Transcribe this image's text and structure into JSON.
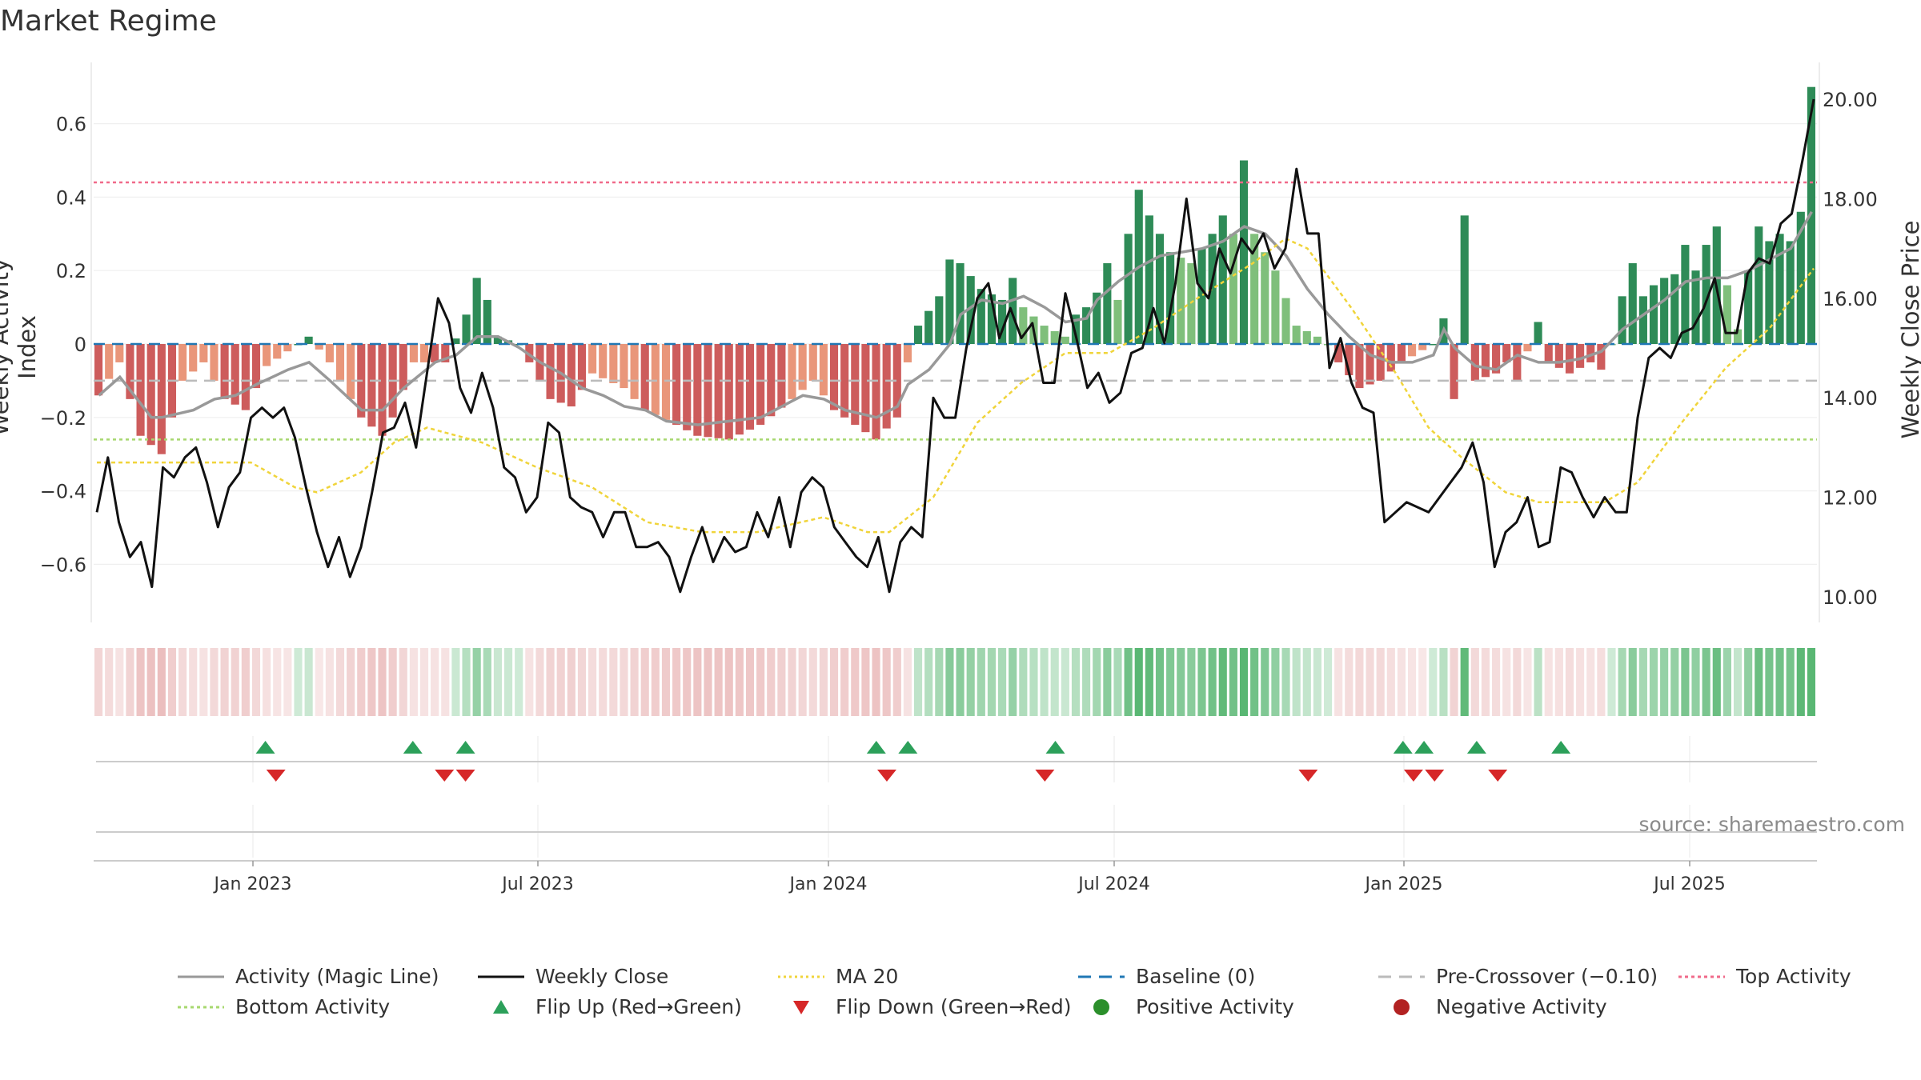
{
  "chart_data": {
    "type": "bar",
    "title": "Market Regime",
    "ylabel_left": "Weekly Activity Index",
    "ylabel_right": "Weekly Close Price",
    "ylim_left": [
      -0.75,
      0.75
    ],
    "ylim_right": [
      9.5,
      20.5
    ],
    "yticks_left": [
      "−0.6",
      "−0.4",
      "−0.2",
      "0",
      "0.2",
      "0.4",
      "0.6"
    ],
    "yticks_right": [
      "10.00",
      "12.00",
      "14.00",
      "16.00",
      "18.00",
      "20.00"
    ],
    "xticks": [
      "Jan 2023",
      "Jul 2023",
      "Jan 2024",
      "Jul 2024",
      "Jan 2025",
      "Jul 2025"
    ],
    "source": "source: sharemaestro.com",
    "reference_lines": {
      "baseline": 0,
      "pre_crossover": -0.1,
      "top_activity": 0.44,
      "bottom_activity": -0.26
    },
    "keyframes_activity": [
      [
        0,
        -0.14
      ],
      [
        2,
        -0.05
      ],
      [
        4,
        -0.25
      ],
      [
        6,
        -0.3
      ],
      [
        8,
        -0.1
      ],
      [
        10,
        -0.05
      ],
      [
        12,
        -0.15
      ],
      [
        14,
        -0.18
      ],
      [
        16,
        -0.06
      ],
      [
        18,
        -0.02
      ],
      [
        20,
        0.02
      ],
      [
        22,
        -0.05
      ],
      [
        25,
        -0.2
      ],
      [
        27,
        -0.25
      ],
      [
        28,
        -0.2
      ],
      [
        30,
        -0.05
      ],
      [
        33,
        -0.05
      ],
      [
        35,
        0.08
      ],
      [
        36,
        0.18
      ],
      [
        37,
        0.12
      ],
      [
        38,
        0.02
      ],
      [
        40,
        0.0
      ],
      [
        41,
        -0.05
      ],
      [
        43,
        -0.15
      ],
      [
        45,
        -0.17
      ],
      [
        47,
        -0.08
      ],
      [
        50,
        -0.12
      ],
      [
        52,
        -0.18
      ],
      [
        55,
        -0.22
      ],
      [
        57,
        -0.25
      ],
      [
        60,
        -0.26
      ],
      [
        63,
        -0.22
      ],
      [
        66,
        -0.15
      ],
      [
        68,
        -0.1
      ],
      [
        70,
        -0.18
      ],
      [
        72,
        -0.22
      ],
      [
        74,
        -0.26
      ],
      [
        76,
        -0.2
      ],
      [
        77,
        -0.05
      ],
      [
        78,
        0.05
      ],
      [
        80,
        0.13
      ],
      [
        81,
        0.23
      ],
      [
        82,
        0.22
      ],
      [
        84,
        0.15
      ],
      [
        86,
        0.12
      ],
      [
        87,
        0.18
      ],
      [
        88,
        0.1
      ],
      [
        90,
        0.05
      ],
      [
        92,
        0.02
      ],
      [
        93,
        0.08
      ],
      [
        94,
        0.1
      ],
      [
        95,
        0.14
      ],
      [
        96,
        0.22
      ],
      [
        97,
        0.12
      ],
      [
        98,
        0.3
      ],
      [
        99,
        0.42
      ],
      [
        100,
        0.35
      ],
      [
        102,
        0.25
      ],
      [
        104,
        0.22
      ],
      [
        106,
        0.3
      ],
      [
        107,
        0.35
      ],
      [
        108,
        0.3
      ],
      [
        109,
        0.5
      ],
      [
        110,
        0.3
      ],
      [
        111,
        0.25
      ],
      [
        112,
        0.2
      ],
      [
        114,
        0.05
      ],
      [
        116,
        0.02
      ],
      [
        117,
        0.0
      ],
      [
        118,
        -0.05
      ],
      [
        120,
        -0.12
      ],
      [
        122,
        -0.1
      ],
      [
        124,
        -0.05
      ],
      [
        127,
        0.0
      ],
      [
        128,
        0.07
      ],
      [
        129,
        -0.15
      ],
      [
        130,
        0.35
      ],
      [
        131,
        -0.1
      ],
      [
        133,
        -0.08
      ],
      [
        134,
        -0.05
      ],
      [
        135,
        -0.1
      ],
      [
        137,
        0.06
      ],
      [
        138,
        -0.05
      ],
      [
        140,
        -0.08
      ],
      [
        142,
        -0.05
      ],
      [
        143,
        -0.07
      ],
      [
        144,
        0.0
      ],
      [
        145,
        0.13
      ],
      [
        146,
        0.22
      ],
      [
        147,
        0.13
      ],
      [
        148,
        0.16
      ],
      [
        149,
        0.18
      ],
      [
        150,
        0.19
      ],
      [
        151,
        0.27
      ],
      [
        152,
        0.2
      ],
      [
        153,
        0.27
      ],
      [
        154,
        0.32
      ],
      [
        155,
        0.16
      ],
      [
        156,
        0.04
      ],
      [
        157,
        0.2
      ],
      [
        158,
        0.32
      ],
      [
        159,
        0.28
      ],
      [
        160,
        0.3
      ],
      [
        161,
        0.28
      ],
      [
        162,
        0.36
      ],
      [
        163,
        0.7
      ]
    ],
    "keyframes_close": [
      [
        0,
        11.7
      ],
      [
        1,
        12.8
      ],
      [
        2,
        11.5
      ],
      [
        3,
        10.8
      ],
      [
        4,
        11.1
      ],
      [
        5,
        10.2
      ],
      [
        6,
        12.6
      ],
      [
        7,
        12.4
      ],
      [
        8,
        12.8
      ],
      [
        9,
        13.0
      ],
      [
        10,
        12.3
      ],
      [
        11,
        11.4
      ],
      [
        12,
        12.2
      ],
      [
        13,
        12.5
      ],
      [
        14,
        13.6
      ],
      [
        15,
        13.8
      ],
      [
        16,
        13.6
      ],
      [
        17,
        13.8
      ],
      [
        18,
        13.2
      ],
      [
        19,
        12.2
      ],
      [
        20,
        11.3
      ],
      [
        21,
        10.6
      ],
      [
        22,
        11.2
      ],
      [
        23,
        10.4
      ],
      [
        24,
        11.0
      ],
      [
        25,
        12.1
      ],
      [
        26,
        13.3
      ],
      [
        27,
        13.4
      ],
      [
        28,
        13.9
      ],
      [
        29,
        13.0
      ],
      [
        30,
        14.5
      ],
      [
        31,
        16.0
      ],
      [
        32,
        15.5
      ],
      [
        33,
        14.2
      ],
      [
        34,
        13.7
      ],
      [
        35,
        14.5
      ],
      [
        36,
        13.8
      ],
      [
        37,
        12.6
      ],
      [
        38,
        12.4
      ],
      [
        39,
        11.7
      ],
      [
        40,
        12.0
      ],
      [
        41,
        13.5
      ],
      [
        42,
        13.3
      ],
      [
        43,
        12.0
      ],
      [
        44,
        11.8
      ],
      [
        45,
        11.7
      ],
      [
        46,
        11.2
      ],
      [
        47,
        11.7
      ],
      [
        48,
        11.7
      ],
      [
        49,
        11.0
      ],
      [
        50,
        11.0
      ],
      [
        51,
        11.1
      ],
      [
        52,
        10.8
      ],
      [
        53,
        10.1
      ],
      [
        54,
        10.8
      ],
      [
        55,
        11.4
      ],
      [
        56,
        10.7
      ],
      [
        57,
        11.2
      ],
      [
        58,
        10.9
      ],
      [
        59,
        11.0
      ],
      [
        60,
        11.7
      ],
      [
        61,
        11.2
      ],
      [
        62,
        12.0
      ],
      [
        63,
        11.0
      ],
      [
        64,
        12.1
      ],
      [
        65,
        12.4
      ],
      [
        66,
        12.2
      ],
      [
        67,
        11.4
      ],
      [
        68,
        11.1
      ],
      [
        69,
        10.8
      ],
      [
        70,
        10.6
      ],
      [
        71,
        11.2
      ],
      [
        72,
        10.1
      ],
      [
        73,
        11.1
      ],
      [
        74,
        11.4
      ],
      [
        75,
        11.2
      ],
      [
        76,
        14.0
      ],
      [
        77,
        13.6
      ],
      [
        78,
        13.6
      ],
      [
        79,
        15.0
      ],
      [
        80,
        16.0
      ],
      [
        81,
        16.3
      ],
      [
        82,
        15.2
      ],
      [
        83,
        15.8
      ],
      [
        84,
        15.2
      ],
      [
        85,
        15.5
      ],
      [
        86,
        14.3
      ],
      [
        87,
        14.3
      ],
      [
        88,
        16.1
      ],
      [
        89,
        15.2
      ],
      [
        90,
        14.2
      ],
      [
        91,
        14.5
      ],
      [
        92,
        13.9
      ],
      [
        93,
        14.1
      ],
      [
        94,
        14.9
      ],
      [
        95,
        15.0
      ],
      [
        96,
        15.8
      ],
      [
        97,
        15.1
      ],
      [
        98,
        16.3
      ],
      [
        99,
        18.0
      ],
      [
        100,
        16.3
      ],
      [
        101,
        16.0
      ],
      [
        102,
        17.0
      ],
      [
        103,
        16.5
      ],
      [
        104,
        17.2
      ],
      [
        105,
        16.9
      ],
      [
        106,
        17.3
      ],
      [
        107,
        16.6
      ],
      [
        108,
        17.0
      ],
      [
        109,
        18.6
      ],
      [
        110,
        17.3
      ],
      [
        111,
        17.3
      ],
      [
        112,
        14.6
      ],
      [
        113,
        15.2
      ],
      [
        114,
        14.3
      ],
      [
        115,
        13.8
      ],
      [
        116,
        13.7
      ],
      [
        117,
        11.5
      ],
      [
        118,
        11.7
      ],
      [
        119,
        11.9
      ],
      [
        120,
        11.8
      ],
      [
        121,
        11.7
      ],
      [
        122,
        12.0
      ],
      [
        123,
        12.3
      ],
      [
        124,
        12.6
      ],
      [
        125,
        13.1
      ],
      [
        126,
        12.3
      ],
      [
        127,
        10.6
      ],
      [
        128,
        11.3
      ],
      [
        129,
        11.5
      ],
      [
        130,
        12.0
      ],
      [
        131,
        11.0
      ],
      [
        132,
        11.1
      ],
      [
        133,
        12.6
      ],
      [
        134,
        12.5
      ],
      [
        135,
        12.0
      ],
      [
        136,
        11.6
      ],
      [
        137,
        12.0
      ],
      [
        138,
        11.7
      ],
      [
        139,
        11.7
      ],
      [
        140,
        13.6
      ],
      [
        141,
        14.8
      ],
      [
        142,
        15.0
      ],
      [
        143,
        14.8
      ],
      [
        144,
        15.3
      ],
      [
        145,
        15.4
      ],
      [
        146,
        15.8
      ],
      [
        147,
        16.4
      ],
      [
        148,
        15.3
      ],
      [
        149,
        15.3
      ],
      [
        150,
        16.5
      ],
      [
        151,
        16.8
      ],
      [
        152,
        16.7
      ],
      [
        153,
        17.5
      ],
      [
        154,
        17.7
      ],
      [
        155,
        18.8
      ],
      [
        156,
        20.0
      ]
    ],
    "keyframes_ma": [
      [
        0,
        12.7
      ],
      [
        10,
        12.7
      ],
      [
        14,
        12.7
      ],
      [
        18,
        12.2
      ],
      [
        20,
        12.1
      ],
      [
        24,
        12.5
      ],
      [
        27,
        13.1
      ],
      [
        30,
        13.4
      ],
      [
        35,
        13.1
      ],
      [
        40,
        12.6
      ],
      [
        45,
        12.2
      ],
      [
        50,
        11.5
      ],
      [
        55,
        11.3
      ],
      [
        60,
        11.3
      ],
      [
        66,
        11.6
      ],
      [
        70,
        11.3
      ],
      [
        72,
        11.3
      ],
      [
        76,
        12.0
      ],
      [
        80,
        13.5
      ],
      [
        84,
        14.3
      ],
      [
        88,
        14.9
      ],
      [
        92,
        14.9
      ],
      [
        96,
        15.4
      ],
      [
        100,
        16.0
      ],
      [
        105,
        16.7
      ],
      [
        108,
        17.2
      ],
      [
        110,
        17.0
      ],
      [
        114,
        15.8
      ],
      [
        118,
        14.5
      ],
      [
        121,
        13.4
      ],
      [
        124,
        12.8
      ],
      [
        128,
        12.1
      ],
      [
        131,
        11.9
      ],
      [
        134,
        11.9
      ],
      [
        137,
        11.9
      ],
      [
        140,
        12.3
      ],
      [
        144,
        13.5
      ],
      [
        148,
        14.6
      ],
      [
        152,
        15.4
      ],
      [
        156,
        16.6
      ]
    ],
    "keyframes_magic": [
      [
        0,
        -0.14
      ],
      [
        2,
        -0.09
      ],
      [
        5,
        -0.2
      ],
      [
        6,
        -0.2
      ],
      [
        9,
        -0.18
      ],
      [
        11,
        -0.15
      ],
      [
        13,
        -0.14
      ],
      [
        15,
        -0.11
      ],
      [
        18,
        -0.07
      ],
      [
        20,
        -0.05
      ],
      [
        22,
        -0.1
      ],
      [
        25,
        -0.18
      ],
      [
        27,
        -0.18
      ],
      [
        29,
        -0.12
      ],
      [
        32,
        -0.05
      ],
      [
        34,
        -0.03
      ],
      [
        36,
        0.02
      ],
      [
        38,
        0.02
      ],
      [
        40,
        -0.01
      ],
      [
        42,
        -0.05
      ],
      [
        44,
        -0.08
      ],
      [
        46,
        -0.12
      ],
      [
        48,
        -0.14
      ],
      [
        50,
        -0.17
      ],
      [
        52,
        -0.18
      ],
      [
        54,
        -0.21
      ],
      [
        57,
        -0.22
      ],
      [
        60,
        -0.21
      ],
      [
        63,
        -0.2
      ],
      [
        65,
        -0.17
      ],
      [
        67,
        -0.14
      ],
      [
        69,
        -0.15
      ],
      [
        71,
        -0.18
      ],
      [
        74,
        -0.2
      ],
      [
        76,
        -0.17
      ],
      [
        77,
        -0.11
      ],
      [
        79,
        -0.07
      ],
      [
        81,
        0.0
      ],
      [
        82,
        0.08
      ],
      [
        84,
        0.12
      ],
      [
        86,
        0.11
      ],
      [
        88,
        0.13
      ],
      [
        90,
        0.1
      ],
      [
        92,
        0.06
      ],
      [
        94,
        0.07
      ],
      [
        95,
        0.12
      ],
      [
        97,
        0.17
      ],
      [
        99,
        0.21
      ],
      [
        101,
        0.24
      ],
      [
        103,
        0.25
      ],
      [
        105,
        0.26
      ],
      [
        107,
        0.28
      ],
      [
        109,
        0.32
      ],
      [
        111,
        0.3
      ],
      [
        113,
        0.24
      ],
      [
        115,
        0.15
      ],
      [
        117,
        0.08
      ],
      [
        119,
        0.02
      ],
      [
        121,
        -0.03
      ],
      [
        123,
        -0.05
      ],
      [
        125,
        -0.05
      ],
      [
        127,
        -0.03
      ],
      [
        128,
        0.04
      ],
      [
        129,
        -0.01
      ],
      [
        131,
        -0.06
      ],
      [
        133,
        -0.07
      ],
      [
        135,
        -0.03
      ],
      [
        137,
        -0.05
      ],
      [
        139,
        -0.05
      ],
      [
        141,
        -0.04
      ],
      [
        143,
        -0.02
      ],
      [
        145,
        0.04
      ],
      [
        147,
        0.08
      ],
      [
        149,
        0.12
      ],
      [
        151,
        0.17
      ],
      [
        153,
        0.18
      ],
      [
        155,
        0.18
      ],
      [
        157,
        0.2
      ],
      [
        159,
        0.23
      ],
      [
        161,
        0.26
      ],
      [
        163,
        0.36
      ]
    ],
    "flip_up": [
      16,
      30,
      35,
      74,
      77,
      91,
      124,
      126,
      131,
      139
    ],
    "flip_down": [
      17,
      33,
      35,
      75,
      90,
      115,
      125,
      127,
      133
    ],
    "colors": {
      "pos_strong": "#2e8b57",
      "pos_light": "#7fbf7b",
      "neg_strong": "#cd5c5c",
      "neg_light": "#e9967a",
      "magic_line": "#999999",
      "close_line": "#111111",
      "ma_line": "#f0d43a",
      "baseline": "#1f77b4",
      "pre_crossover": "#bbbbbb",
      "top_activity": "#f06a8a",
      "bottom_activity": "#a7d86f",
      "flip_up": "#2ca05a",
      "flip_down": "#d62728",
      "positive_dot": "#2b8f2b",
      "negative_dot": "#b22222"
    },
    "legend": [
      {
        "label": "Activity (Magic Line)",
        "style": "solid",
        "color": "#999999"
      },
      {
        "label": "Weekly Close",
        "style": "solid",
        "color": "#111111"
      },
      {
        "label": "MA 20",
        "style": "dotted",
        "color": "#f0d43a"
      },
      {
        "label": "Baseline (0)",
        "style": "dashed",
        "color": "#1f77b4"
      },
      {
        "label": "Pre-Crossover (−0.10)",
        "style": "dashed",
        "color": "#bbbbbb"
      },
      {
        "label": "Top Activity",
        "style": "dotted",
        "color": "#f06a8a"
      },
      {
        "label": "Bottom Activity",
        "style": "dotted",
        "color": "#a7d86f"
      },
      {
        "label": "Flip Up (Red→Green)",
        "style": "tri-up",
        "color": "#2ca05a"
      },
      {
        "label": "Flip Down (Green→Red)",
        "style": "tri-down",
        "color": "#d62728"
      },
      {
        "label": "Positive Activity",
        "style": "dot",
        "color": "#2b8f2b"
      },
      {
        "label": "Negative Activity",
        "style": "dot",
        "color": "#b22222"
      }
    ]
  }
}
